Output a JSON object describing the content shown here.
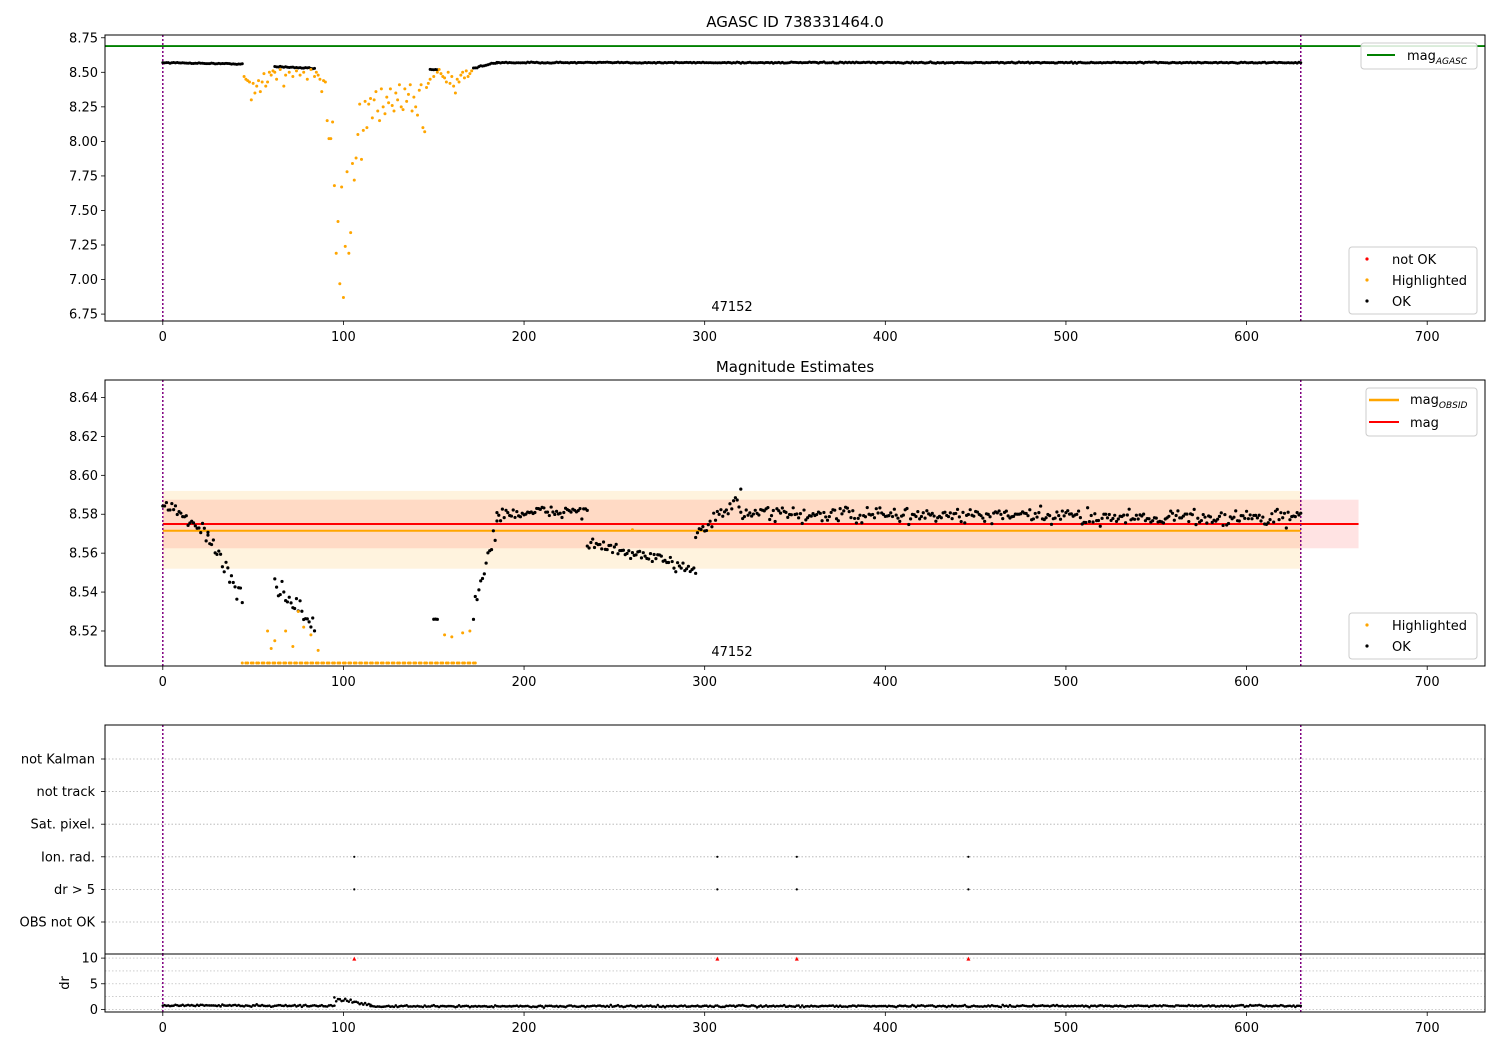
{
  "figure": {
    "background": "#ffffff",
    "colors": {
      "ok": "#000000",
      "highlighted": "#ffa500",
      "not_ok": "#ff0000",
      "mag_agasc": "#008000",
      "mag_obsid": "#ffa500",
      "mag": "#ff0000",
      "obsid_line": "#800080",
      "grid": "#b0b0b0"
    }
  },
  "chart_data": [
    {
      "type": "scatter",
      "title": "AGASC ID 738331464.0",
      "xlim": [
        -32,
        732
      ],
      "ylim": [
        6.7,
        8.77
      ],
      "xticks": [
        0,
        100,
        200,
        300,
        400,
        500,
        600,
        700
      ],
      "yticks": [
        6.75,
        7.0,
        7.25,
        7.5,
        7.75,
        8.0,
        8.25,
        8.5,
        8.75
      ],
      "ytick_labels": [
        "6.75",
        "7.00",
        "7.25",
        "7.50",
        "7.75",
        "8.00",
        "8.25",
        "8.50",
        "8.75"
      ],
      "obsid_lines": [
        0,
        630
      ],
      "obsid_label": {
        "text": "47152",
        "x": 315
      },
      "hlines": [
        {
          "name": "mag_AGASC",
          "y": 8.69,
          "color": "#008000"
        }
      ],
      "legend_top": {
        "entries": [
          {
            "label": "mag",
            "sub": "AGASC",
            "color": "#008000"
          }
        ],
        "loc": "upper right"
      },
      "legend_bottom": {
        "entries": [
          {
            "label": "not OK",
            "color": "#ff0000"
          },
          {
            "label": "Highlighted",
            "color": "#ffa500"
          },
          {
            "label": "OK",
            "color": "#000000"
          }
        ],
        "loc": "lower right"
      },
      "series": [
        {
          "name": "OK",
          "color": "#000000",
          "segments": [
            {
              "x": [
                0,
                44
              ],
              "y": [
                8.57,
                8.56
              ],
              "noise": 0.006
            },
            {
              "x": [
                62,
                84
              ],
              "y": [
                8.54,
                8.53
              ],
              "noise": 0.01
            },
            {
              "x": [
                148,
                152
              ],
              "y": [
                8.52,
                8.52
              ],
              "noise": 0.005
            },
            {
              "x": [
                172,
                185
              ],
              "y": [
                8.53,
                8.57
              ],
              "noise": 0.01
            },
            {
              "x": [
                185,
                630
              ],
              "y": [
                8.57,
                8.57
              ],
              "noise": 0.008
            }
          ]
        },
        {
          "name": "Highlighted",
          "color": "#ffa500",
          "points": [
            [
              45,
              8.47
            ],
            [
              46,
              8.45
            ],
            [
              47,
              8.44
            ],
            [
              48,
              8.43
            ],
            [
              49,
              8.3
            ],
            [
              50,
              8.42
            ],
            [
              51,
              8.35
            ],
            [
              52,
              8.4
            ],
            [
              53,
              8.44
            ],
            [
              54,
              8.36
            ],
            [
              55,
              8.43
            ],
            [
              56,
              8.49
            ],
            [
              57,
              8.4
            ],
            [
              58,
              8.43
            ],
            [
              59,
              8.5
            ],
            [
              60,
              8.48
            ],
            [
              61,
              8.51
            ],
            [
              62,
              8.5
            ],
            [
              63,
              8.45
            ],
            [
              65,
              8.52
            ],
            [
              67,
              8.4
            ],
            [
              68,
              8.48
            ],
            [
              70,
              8.5
            ],
            [
              72,
              8.47
            ],
            [
              74,
              8.51
            ],
            [
              76,
              8.48
            ],
            [
              78,
              8.5
            ],
            [
              80,
              8.45
            ],
            [
              82,
              8.52
            ],
            [
              84,
              8.47
            ],
            [
              85,
              8.5
            ],
            [
              86,
              8.48
            ],
            [
              87,
              8.45
            ],
            [
              88,
              8.36
            ],
            [
              89,
              8.44
            ],
            [
              90,
              8.43
            ],
            [
              91,
              8.15
            ],
            [
              92,
              8.02
            ],
            [
              93,
              8.02
            ],
            [
              94,
              8.14
            ],
            [
              95,
              7.68
            ],
            [
              96,
              7.19
            ],
            [
              97,
              7.42
            ],
            [
              98,
              6.97
            ],
            [
              99,
              7.67
            ],
            [
              100,
              6.87
            ],
            [
              101,
              7.24
            ],
            [
              102,
              7.78
            ],
            [
              103,
              7.19
            ],
            [
              104,
              7.34
            ],
            [
              105,
              7.84
            ],
            [
              106,
              7.72
            ],
            [
              107,
              7.88
            ],
            [
              108,
              8.05
            ],
            [
              109,
              8.27
            ],
            [
              110,
              7.87
            ],
            [
              111,
              8.08
            ],
            [
              112,
              8.29
            ],
            [
              113,
              8.1
            ],
            [
              114,
              8.27
            ],
            [
              115,
              8.31
            ],
            [
              116,
              8.17
            ],
            [
              117,
              8.3
            ],
            [
              118,
              8.36
            ],
            [
              119,
              8.22
            ],
            [
              120,
              8.15
            ],
            [
              121,
              8.38
            ],
            [
              122,
              8.25
            ],
            [
              123,
              8.2
            ],
            [
              124,
              8.32
            ],
            [
              125,
              8.28
            ],
            [
              126,
              8.38
            ],
            [
              127,
              8.26
            ],
            [
              128,
              8.22
            ],
            [
              129,
              8.35
            ],
            [
              130,
              8.3
            ],
            [
              131,
              8.41
            ],
            [
              132,
              8.25
            ],
            [
              133,
              8.23
            ],
            [
              134,
              8.38
            ],
            [
              135,
              8.29
            ],
            [
              136,
              8.34
            ],
            [
              137,
              8.41
            ],
            [
              138,
              8.22
            ],
            [
              139,
              8.32
            ],
            [
              140,
              8.25
            ],
            [
              141,
              8.19
            ],
            [
              142,
              8.37
            ],
            [
              143,
              8.41
            ],
            [
              144,
              8.1
            ],
            [
              145,
              8.07
            ],
            [
              146,
              8.39
            ],
            [
              147,
              8.42
            ],
            [
              148,
              8.45
            ],
            [
              150,
              8.47
            ],
            [
              152,
              8.5
            ],
            [
              153,
              8.52
            ],
            [
              154,
              8.49
            ],
            [
              155,
              8.47
            ],
            [
              156,
              8.46
            ],
            [
              157,
              8.43
            ],
            [
              158,
              8.5
            ],
            [
              159,
              8.42
            ],
            [
              160,
              8.47
            ],
            [
              161,
              8.4
            ],
            [
              162,
              8.35
            ],
            [
              163,
              8.45
            ],
            [
              164,
              8.43
            ],
            [
              165,
              8.48
            ],
            [
              166,
              8.5
            ],
            [
              167,
              8.46
            ],
            [
              168,
              8.51
            ],
            [
              169,
              8.47
            ],
            [
              170,
              8.49
            ],
            [
              171,
              8.51
            ]
          ]
        }
      ]
    },
    {
      "type": "scatter",
      "title": "Magnitude Estimates",
      "xlim": [
        -32,
        732
      ],
      "ylim": [
        8.502,
        8.649
      ],
      "xticks": [
        0,
        100,
        200,
        300,
        400,
        500,
        600,
        700
      ],
      "yticks": [
        8.52,
        8.54,
        8.56,
        8.58,
        8.6,
        8.62,
        8.64
      ],
      "ytick_labels": [
        "8.52",
        "8.54",
        "8.56",
        "8.58",
        "8.60",
        "8.62",
        "8.64"
      ],
      "obsid_lines": [
        0,
        630
      ],
      "obsid_label": {
        "text": "47152",
        "x": 315
      },
      "bands": [
        {
          "name": "mag band",
          "x": [
            0,
            662
          ],
          "y": [
            8.5625,
            8.5875
          ],
          "color": "#ff0000",
          "opacity": 0.11
        },
        {
          "name": "mag_OBSID band",
          "x": [
            0,
            630
          ],
          "y": [
            8.552,
            8.592
          ],
          "color": "#ffa500",
          "opacity": 0.13
        }
      ],
      "hlines": [
        {
          "name": "mag_OBSID",
          "y": 8.5715,
          "x": [
            0,
            630
          ],
          "color": "#ffa500"
        },
        {
          "name": "mag",
          "y": 8.575,
          "x": [
            0,
            662
          ],
          "color": "#ff0000"
        }
      ],
      "legend_top": {
        "entries": [
          {
            "label": "mag",
            "sub": "OBSID",
            "color": "#ffa500"
          },
          {
            "label": "mag",
            "sub": "",
            "color": "#ff0000"
          }
        ],
        "loc": "upper right"
      },
      "legend_bottom": {
        "entries": [
          {
            "label": "Highlighted",
            "color": "#ffa500"
          },
          {
            "label": "OK",
            "color": "#000000"
          }
        ],
        "loc": "lower right"
      },
      "series": [
        {
          "name": "OK",
          "color": "#000000",
          "segments": [
            {
              "x": [
                0,
                25
              ],
              "y": [
                8.585,
                8.57
              ],
              "noise": 0.008
            },
            {
              "x": [
                25,
                44
              ],
              "y": [
                8.57,
                8.535
              ],
              "noise": 0.008
            },
            {
              "x": [
                62,
                84
              ],
              "y": [
                8.545,
                8.522
              ],
              "noise": 0.012
            },
            {
              "x": [
                150,
                152
              ],
              "y": [
                8.526,
                8.526
              ],
              "noise": 0.001
            },
            {
              "x": [
                172,
                185
              ],
              "y": [
                8.53,
                8.575
              ],
              "noise": 0.01
            },
            {
              "x": [
                185,
                235
              ],
              "y": [
                8.58,
                8.582
              ],
              "noise": 0.006
            },
            {
              "x": [
                235,
                295
              ],
              "y": [
                8.565,
                8.552
              ],
              "noise": 0.006
            },
            {
              "x": [
                295,
                320
              ],
              "y": [
                8.57,
                8.588
              ],
              "noise": 0.008
            },
            {
              "x": [
                320,
                630
              ],
              "y": [
                8.58,
                8.578
              ],
              "noise": 0.008
            }
          ]
        },
        {
          "name": "Highlighted",
          "color": "#ffa500",
          "points": [
            [
              58,
              8.52
            ],
            [
              60,
              8.511
            ],
            [
              62,
              8.515
            ],
            [
              68,
              8.52
            ],
            [
              72,
              8.512
            ],
            [
              75,
              8.53
            ],
            [
              78,
              8.522
            ],
            [
              82,
              8.518
            ],
            [
              86,
              8.51
            ],
            [
              156,
              8.518
            ],
            [
              160,
              8.517
            ],
            [
              166,
              8.519
            ],
            [
              170,
              8.52
            ],
            [
              260,
              8.572
            ]
          ],
          "floor_range": [
            44,
            174
          ]
        }
      ]
    },
    {
      "type": "scatter",
      "title": "",
      "xlim": [
        -32,
        732
      ],
      "categories": [
        "not Kalman",
        "not track",
        "Sat. pixel.",
        "Ion. rad.",
        "dr > 5",
        "OBS not OK"
      ],
      "obsid_lines": [
        0,
        630
      ],
      "flags": [
        {
          "category": "Ion. rad.",
          "x": [
            106,
            307,
            351,
            446
          ]
        },
        {
          "category": "dr > 5",
          "x": [
            106,
            307,
            351,
            446
          ]
        }
      ]
    },
    {
      "type": "scatter",
      "title": "",
      "ylabel": "dr",
      "xlim": [
        -32,
        732
      ],
      "ylim": [
        -0.5,
        10.8
      ],
      "xticks": [
        0,
        100,
        200,
        300,
        400,
        500,
        600,
        700
      ],
      "yticks": [
        0,
        5,
        10
      ],
      "ytick_labels": [
        "0",
        "5",
        "10"
      ],
      "obsid_lines": [
        0,
        630
      ],
      "series": [
        {
          "name": "dr",
          "color": "#000000",
          "segments": [
            {
              "x": [
                0,
                95
              ],
              "y": [
                0.8,
                0.7
              ],
              "noise": 0.4
            },
            {
              "x": [
                95,
                115
              ],
              "y": [
                2.0,
                1.0
              ],
              "noise": 0.6
            },
            {
              "x": [
                115,
                630
              ],
              "y": [
                0.6,
                0.7
              ],
              "noise": 0.35
            }
          ]
        },
        {
          "name": "clipped",
          "color": "#ff0000",
          "markers": "triangle",
          "points": [
            [
              106,
              9.9
            ],
            [
              307,
              9.9
            ],
            [
              351,
              9.9
            ],
            [
              446,
              9.9
            ]
          ]
        }
      ]
    }
  ]
}
